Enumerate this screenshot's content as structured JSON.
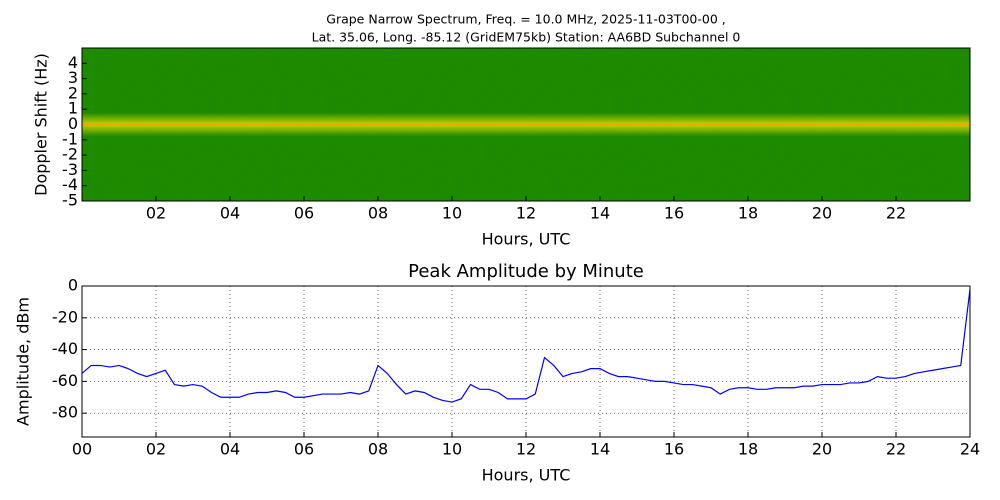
{
  "chart_data": [
    {
      "type": "spectrogram",
      "title": [
        "Grape Narrow Spectrum, Freq. = 10.0 MHz, 2025-11-03T00-00 ,",
        "Lat.  35.06, Long. -85.12 (GridEM75kb) Station: AA6BD Subchannel 0"
      ],
      "x_label": "Hours, UTC",
      "y_label": "Doppler Shift (Hz)",
      "xlim": [
        0,
        24
      ],
      "ylim": [
        -5,
        5
      ],
      "xticks": [
        {
          "value": 2,
          "label": "02"
        },
        {
          "value": 4,
          "label": "04"
        },
        {
          "value": 6,
          "label": "06"
        },
        {
          "value": 8,
          "label": "08"
        },
        {
          "value": 10,
          "label": "10"
        },
        {
          "value": 12,
          "label": "12"
        },
        {
          "value": 14,
          "label": "14"
        },
        {
          "value": 16,
          "label": "16"
        },
        {
          "value": 18,
          "label": "18"
        },
        {
          "value": 20,
          "label": "20"
        },
        {
          "value": 22,
          "label": "22"
        }
      ],
      "yticks": [
        -5,
        -4,
        -3,
        -2,
        -1,
        0,
        1,
        2,
        3,
        4
      ]
    },
    {
      "type": "line",
      "title": "Peak Amplitude by Minute",
      "x_label": "Hours, UTC",
      "y_label": "Amplitude, dBm",
      "color": "#0000ff",
      "grid": true,
      "xlim": [
        0,
        24
      ],
      "ylim": [
        -95,
        0
      ],
      "xticks": [
        {
          "value": 0,
          "label": "00"
        },
        {
          "value": 2,
          "label": "02"
        },
        {
          "value": 4,
          "label": "04"
        },
        {
          "value": 6,
          "label": "06"
        },
        {
          "value": 8,
          "label": "08"
        },
        {
          "value": 10,
          "label": "10"
        },
        {
          "value": 12,
          "label": "12"
        },
        {
          "value": 14,
          "label": "14"
        },
        {
          "value": 16,
          "label": "16"
        },
        {
          "value": 18,
          "label": "18"
        },
        {
          "value": 20,
          "label": "20"
        },
        {
          "value": 22,
          "label": "22"
        },
        {
          "value": 24,
          "label": "24"
        }
      ],
      "yticks": [
        0,
        -20,
        -40,
        -60,
        -80
      ],
      "x": [
        0,
        0.25,
        0.5,
        0.75,
        1,
        1.25,
        1.5,
        1.75,
        2,
        2.25,
        2.5,
        2.75,
        3,
        3.25,
        3.5,
        3.75,
        4,
        4.25,
        4.5,
        4.75,
        5,
        5.25,
        5.5,
        5.75,
        6,
        6.25,
        6.5,
        6.75,
        7,
        7.25,
        7.5,
        7.75,
        8,
        8.25,
        8.5,
        8.75,
        9,
        9.25,
        9.5,
        9.75,
        10,
        10.25,
        10.5,
        10.75,
        11,
        11.25,
        11.5,
        11.75,
        12,
        12.25,
        12.5,
        12.75,
        13,
        13.25,
        13.5,
        13.75,
        14,
        14.25,
        14.5,
        14.75,
        15,
        15.25,
        15.5,
        15.75,
        16,
        16.25,
        16.5,
        16.75,
        17,
        17.25,
        17.5,
        17.75,
        18,
        18.25,
        18.5,
        18.75,
        19,
        19.25,
        19.5,
        19.75,
        20,
        20.25,
        20.5,
        20.75,
        21,
        21.25,
        21.5,
        21.75,
        22,
        22.25,
        22.5,
        22.75,
        23,
        23.25,
        23.5,
        23.75,
        24
      ],
      "values": [
        -55,
        -50,
        -50,
        -51,
        -50,
        -52,
        -55,
        -57,
        -55,
        -53,
        -62,
        -63,
        -62,
        -63,
        -67,
        -70,
        -70,
        -70,
        -68,
        -67,
        -67,
        -66,
        -67,
        -70,
        -70,
        -69,
        -68,
        -68,
        -68,
        -67,
        -68,
        -66,
        -50,
        -55,
        -62,
        -68,
        -66,
        -67,
        -70,
        -72,
        -73,
        -71,
        -62,
        -65,
        -65,
        -67,
        -71,
        -71,
        -71,
        -68,
        -45,
        -50,
        -57,
        -55,
        -54,
        -52,
        -52,
        -55,
        -57,
        -57,
        -58,
        -59,
        -60,
        -60,
        -61,
        -62,
        -62,
        -63,
        -64,
        -68,
        -65,
        -64,
        -64,
        -65,
        -65,
        -64,
        -64,
        -64,
        -63,
        -63,
        -62,
        -62,
        -62,
        -61,
        -61,
        -60,
        -57,
        -58,
        -58,
        -57,
        -55,
        -54,
        -53,
        -52,
        -51,
        -50,
        -2
      ]
    }
  ]
}
